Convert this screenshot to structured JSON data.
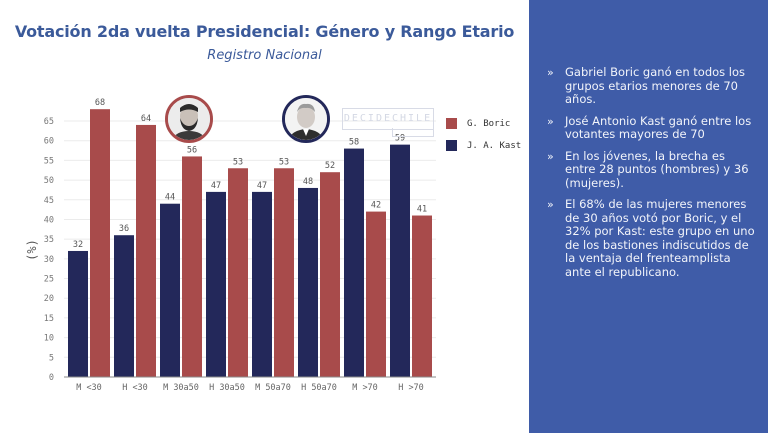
{
  "header": {
    "title": "Votación 2da vuelta Presidencial: Género y Rango Etario",
    "subtitle": "Registro Nacional"
  },
  "watermark": {
    "text": "DECIDECHILE",
    "subtext": "by unholster"
  },
  "photos": {
    "boric": "boric-portrait",
    "kast": "kast-portrait"
  },
  "colors": {
    "boric": "#a84b4b",
    "kast": "#23285a",
    "panel": "#3f5ca8",
    "title": "#3b5a9a"
  },
  "chart_data": {
    "type": "bar",
    "title": "Votación 2da vuelta Presidencial: Género y Rango Etario",
    "subtitle": "Registro Nacional",
    "xlabel": "",
    "ylabel": "(%)",
    "ylim": [
      0,
      65
    ],
    "yticks": [
      0,
      5,
      10,
      15,
      20,
      25,
      30,
      35,
      40,
      45,
      50,
      55,
      60,
      65
    ],
    "grid": true,
    "legend_position": "right",
    "categories": [
      "M <30",
      "H <30",
      "M 30a50",
      "H 30a50",
      "M 50a70",
      "H 50a70",
      "M >70",
      "H >70"
    ],
    "series": [
      {
        "name": "J. A. Kast",
        "color": "#23285a",
        "values": [
          32,
          36,
          44,
          47,
          47,
          48,
          58,
          59
        ]
      },
      {
        "name": "G. Boric",
        "color": "#a84b4b",
        "values": [
          68,
          64,
          56,
          53,
          53,
          52,
          42,
          41
        ]
      }
    ]
  },
  "legend": [
    {
      "label": "G. Boric",
      "color": "#a84b4b"
    },
    {
      "label": "J. A. Kast",
      "color": "#23285a"
    }
  ],
  "sidebar": {
    "bullet_mark": "»",
    "bullets": [
      "Gabriel Boric ganó en todos los grupos etarios menores de 70 años.",
      "José Antonio Kast ganó entre los votantes mayores de 70",
      "En los jóvenes, la brecha es entre 28 puntos (hombres) y 36 (mujeres).",
      "El 68% de las mujeres menores de 30 años votó por Boric, y el 32% por Kast: este grupo en uno de los bastiones indiscutidos de la ventaja del frenteamplista ante el republicano."
    ]
  }
}
